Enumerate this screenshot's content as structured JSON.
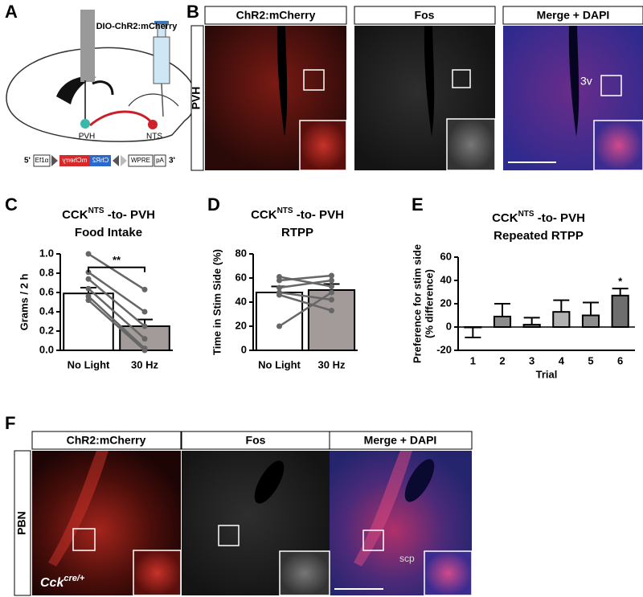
{
  "panel_labels": [
    "A",
    "B",
    "C",
    "D",
    "E",
    "F"
  ],
  "panel_a": {
    "injection_label": "DIO-ChR2:mCherry",
    "regions": [
      "PVH",
      "NTS"
    ],
    "construct": {
      "five_prime": "5'",
      "promoter": "Ef1α",
      "mcherry": "mCherry",
      "chr2": "ChR2",
      "wpre": "WPRE",
      "pa": "pA",
      "three_prime": "3'"
    }
  },
  "panel_b": {
    "headers": [
      "ChR2:mCherry",
      "Fos",
      "Merge + DAPI"
    ],
    "region": "PVH",
    "annotation": "3v"
  },
  "panel_f": {
    "headers": [
      "ChR2:mCherry",
      "Fos",
      "Merge + DAPI"
    ],
    "region": "PBN",
    "annotation": "scp",
    "genotype": "Cck",
    "genotype_sup": "cre/+"
  },
  "chart_data": [
    {
      "type": "bar",
      "title": "CCK",
      "title_sup": "NTS",
      "title_rest": " -to- PVH",
      "subtitle": "Food Intake",
      "ylabel": [
        "Grams / 2 h"
      ],
      "categories": [
        "No Light",
        "30 Hz"
      ],
      "values": [
        0.59,
        0.25
      ],
      "errors": [
        0.06,
        0.07
      ],
      "colors": [
        "#ffffff",
        "#a39a9a"
      ],
      "paired_values": [
        [
          1.0,
          0.63
        ],
        [
          0.81,
          0.4
        ],
        [
          0.74,
          0.25
        ],
        [
          0.64,
          0.12
        ],
        [
          0.56,
          0.02
        ],
        [
          0.52,
          0.0
        ]
      ],
      "significance": "**",
      "ylim": [
        0,
        1
      ],
      "yticks": [
        {
          "value": 0,
          "label": "0.0"
        },
        0.2,
        0.4,
        0.6,
        0.8,
        {
          "value": 1,
          "label": "1.0"
        }
      ]
    },
    {
      "type": "bar",
      "title": "CCK",
      "title_sup": "NTS",
      "title_rest": " -to- PVH",
      "subtitle": "RTPP",
      "ylabel": [
        "Time in Stim Side (%)"
      ],
      "categories": [
        "No Light",
        "30 Hz"
      ],
      "values": [
        48,
        50
      ],
      "errors": [
        5,
        5
      ],
      "colors": [
        "#ffffff",
        "#a39a9a"
      ],
      "paired_values": [
        [
          61,
          53
        ],
        [
          58,
          62
        ],
        [
          52,
          58
        ],
        [
          48,
          42
        ],
        [
          46,
          33
        ],
        [
          20,
          48
        ]
      ],
      "ylim": [
        0,
        80
      ],
      "yticks": [
        0,
        20,
        40,
        60,
        80
      ]
    },
    {
      "type": "bar",
      "title": "CCK",
      "title_sup": "NTS",
      "title_rest": " -to- PVH",
      "subtitle": "Repeated RTPP",
      "ylabel": [
        "Preference for stim side",
        "(% difference)"
      ],
      "xlabel": "Trial",
      "categories": [
        "1",
        "2",
        "3",
        "4",
        "5",
        "6"
      ],
      "values": [
        0,
        9,
        2,
        13,
        10,
        27
      ],
      "errors": [
        9,
        11,
        6,
        10,
        11,
        6
      ],
      "colors": [
        "#ffffff",
        "#8c8c8c",
        "#8c8c8c",
        "#b2b2b2",
        "#8c8c8c",
        "#6e6e6e"
      ],
      "value_annotations": [
        null,
        null,
        null,
        null,
        null,
        "*"
      ],
      "ylim": [
        -20,
        60
      ],
      "yticks": [
        -20,
        0,
        20,
        40,
        60
      ]
    }
  ]
}
